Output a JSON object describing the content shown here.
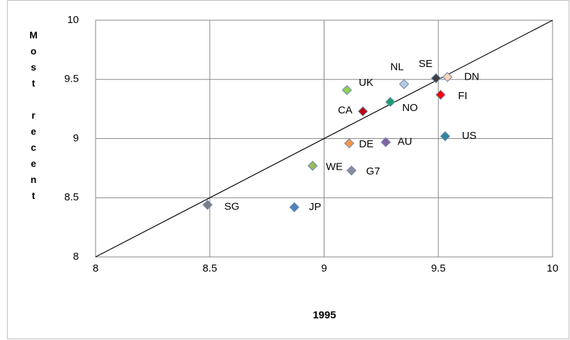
{
  "chart_data": {
    "type": "scatter",
    "x_label": "1995",
    "y_label": "Most recent",
    "xlim": [
      8,
      10
    ],
    "ylim": [
      8,
      10
    ],
    "xticks": [
      8,
      8.5,
      9,
      9.5,
      10
    ],
    "yticks": [
      8,
      8.5,
      9,
      9.5,
      10
    ],
    "grid": true,
    "identity_line": true,
    "series": [
      {
        "name": "SG",
        "color": "#7f7f7f",
        "x": [
          8.49
        ],
        "values": [
          8.44
        ]
      },
      {
        "name": "JP",
        "color": "#4f81bd",
        "x": [
          8.87
        ],
        "values": [
          8.42
        ]
      },
      {
        "name": "WE",
        "color": "#9bbb59",
        "x": [
          8.95
        ],
        "values": [
          8.77
        ]
      },
      {
        "name": "G7",
        "color": "#8c8c9c",
        "x": [
          9.12
        ],
        "values": [
          8.73
        ]
      },
      {
        "name": "DE",
        "color": "#f79646",
        "x": [
          9.11
        ],
        "values": [
          8.96
        ]
      },
      {
        "name": "AU",
        "color": "#8064a2",
        "x": [
          9.27
        ],
        "values": [
          8.97
        ]
      },
      {
        "name": "US",
        "color": "#31859c",
        "x": [
          9.53
        ],
        "values": [
          9.02
        ]
      },
      {
        "name": "CA",
        "color": "#c0000b",
        "x": [
          9.17
        ],
        "values": [
          9.23
        ]
      },
      {
        "name": "NO",
        "color": "#1f9e6e",
        "x": [
          9.29
        ],
        "values": [
          9.31
        ]
      },
      {
        "name": "UK",
        "color": "#92d050",
        "x": [
          9.1
        ],
        "values": [
          9.41
        ]
      },
      {
        "name": "NL",
        "color": "#b9c9dd",
        "x": [
          9.35
        ],
        "values": [
          9.46
        ]
      },
      {
        "name": "SE",
        "color": "#404040",
        "x": [
          9.49
        ],
        "values": [
          9.51
        ]
      },
      {
        "name": "DN",
        "color": "#fbd4b4",
        "x": [
          9.54
        ],
        "values": [
          9.52
        ]
      },
      {
        "name": "FI",
        "color": "#ff0000",
        "x": [
          9.51
        ],
        "values": [
          9.37
        ]
      }
    ]
  }
}
